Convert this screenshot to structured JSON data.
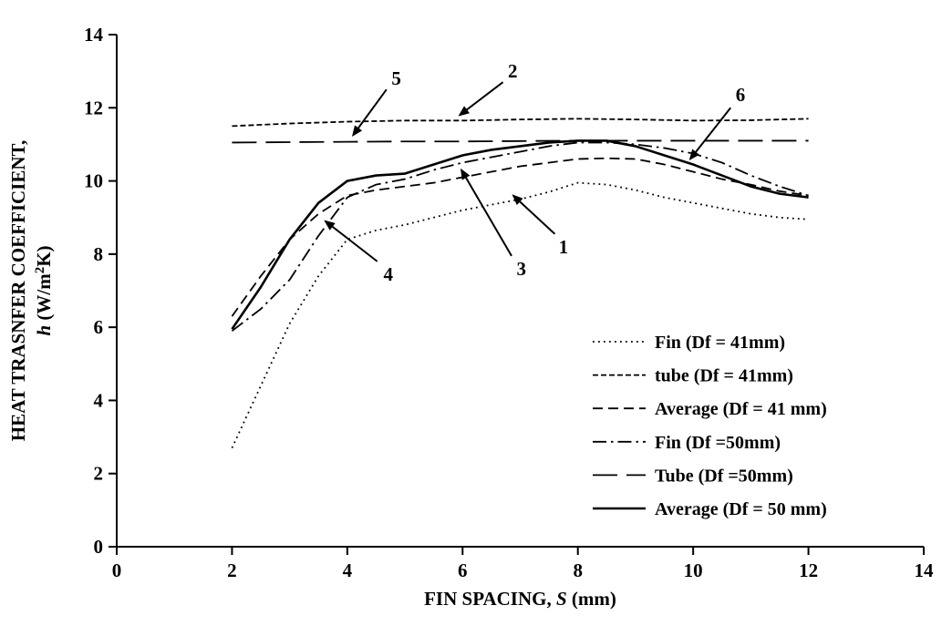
{
  "chart_data": {
    "type": "line",
    "title": "",
    "line_color": "#000000",
    "xlabel_pre": "FIN SPACING, ",
    "xlabel_italic": "S",
    "xlabel_post": " (mm)",
    "ylabel_line1": "HEAT TRASNFER COEFFICIENT,",
    "ylabel_line2": {
      "italic": "h",
      "pre_sup": " (W/m",
      "sup": "2",
      "post_sup": "K)"
    },
    "xlim": [
      0,
      14
    ],
    "ylim": [
      0,
      14
    ],
    "xticks": [
      0,
      2,
      4,
      6,
      8,
      10,
      12,
      14
    ],
    "yticks": [
      0,
      2,
      4,
      6,
      8,
      10,
      12,
      14
    ],
    "grid": false,
    "legend_position": "inside lower right",
    "series": [
      {
        "name": "Fin (Df = 41mm)",
        "line_style": "dotted",
        "dash": "1.8 4.2",
        "width": 1.8,
        "x": [
          2,
          2.5,
          3,
          3.5,
          4,
          4.5,
          5,
          5.5,
          6,
          6.5,
          7,
          7.5,
          8,
          8.5,
          9,
          9.5,
          10,
          10.5,
          11,
          11.5,
          12
        ],
        "y": [
          2.7,
          4.4,
          6.1,
          7.4,
          8.4,
          8.65,
          8.8,
          9.0,
          9.2,
          9.35,
          9.5,
          9.7,
          9.95,
          9.9,
          9.75,
          9.55,
          9.4,
          9.25,
          9.1,
          9.0,
          8.95
        ]
      },
      {
        "name": "tube (Df = 41mm)",
        "line_style": "short-dash",
        "dash": "6 3",
        "width": 1.8,
        "x": [
          2,
          3,
          4,
          5,
          6,
          7,
          8,
          9,
          10,
          11,
          12
        ],
        "y": [
          11.5,
          11.57,
          11.62,
          11.65,
          11.65,
          11.68,
          11.7,
          11.68,
          11.65,
          11.66,
          11.7
        ]
      },
      {
        "name": "Average (Df = 41 mm)",
        "line_style": "dash",
        "dash": "11 6",
        "width": 1.8,
        "x": [
          2,
          2.5,
          3,
          3.5,
          4,
          4.5,
          5,
          5.5,
          6,
          6.5,
          7,
          7.5,
          8,
          8.5,
          9,
          9.5,
          10,
          10.5,
          11,
          11.5,
          12
        ],
        "y": [
          6.3,
          7.4,
          8.4,
          9.1,
          9.6,
          9.75,
          9.85,
          9.95,
          10.1,
          10.25,
          10.4,
          10.5,
          10.6,
          10.62,
          10.6,
          10.45,
          10.25,
          10.05,
          9.9,
          9.72,
          9.6
        ]
      },
      {
        "name": "Fin (Df =50mm)",
        "line_style": "dash-dot",
        "dash": "15 5 2.5 5",
        "width": 1.8,
        "x": [
          2,
          2.5,
          3,
          3.5,
          4,
          4.5,
          5,
          5.5,
          6,
          6.5,
          7,
          7.5,
          8,
          8.5,
          9,
          9.5,
          10,
          10.5,
          11,
          11.5,
          12
        ],
        "y": [
          5.9,
          6.5,
          7.3,
          8.5,
          9.55,
          9.9,
          10.05,
          10.3,
          10.5,
          10.65,
          10.8,
          10.95,
          11.05,
          11.05,
          11.0,
          10.9,
          10.75,
          10.5,
          10.15,
          9.85,
          9.6
        ]
      },
      {
        "name": "Tube (Df =50mm)",
        "line_style": "long-dash",
        "dash": "27 10",
        "width": 1.8,
        "x": [
          2,
          3,
          4,
          5,
          6,
          7,
          8,
          9,
          10,
          11,
          12
        ],
        "y": [
          11.05,
          11.06,
          11.07,
          11.08,
          11.08,
          11.09,
          11.1,
          11.1,
          11.1,
          11.1,
          11.1
        ]
      },
      {
        "name": "Average (Df = 50 mm)",
        "line_style": "solid",
        "dash": "",
        "width": 2.6,
        "x": [
          2,
          2.5,
          3,
          3.5,
          4,
          4.5,
          5,
          5.5,
          6,
          6.5,
          7,
          7.5,
          8,
          8.5,
          9,
          9.5,
          10,
          10.5,
          11,
          11.5,
          12
        ],
        "y": [
          5.95,
          7.1,
          8.4,
          9.4,
          10.0,
          10.15,
          10.2,
          10.45,
          10.7,
          10.85,
          10.95,
          11.05,
          11.1,
          11.1,
          10.95,
          10.7,
          10.45,
          10.15,
          9.85,
          9.65,
          9.55
        ]
      }
    ],
    "annotations": [
      {
        "label": "1",
        "label_x": 7.75,
        "label_y": 8.2,
        "tail_x": 7.6,
        "tail_y": 8.55,
        "tip_x": 6.88,
        "tip_y": 9.6
      },
      {
        "label": "2",
        "label_x": 6.87,
        "label_y": 13.0,
        "tail_x": 6.7,
        "tail_y": 12.7,
        "tip_x": 5.95,
        "tip_y": 11.8
      },
      {
        "label": "3",
        "label_x": 7.02,
        "label_y": 7.6,
        "tail_x": 6.85,
        "tail_y": 7.95,
        "tip_x": 5.98,
        "tip_y": 10.3
      },
      {
        "label": "4",
        "label_x": 4.71,
        "label_y": 7.45,
        "tail_x": 4.52,
        "tail_y": 7.8,
        "tip_x": 3.62,
        "tip_y": 8.9
      },
      {
        "label": "5",
        "label_x": 4.85,
        "label_y": 12.8,
        "tail_x": 4.68,
        "tail_y": 12.5,
        "tip_x": 4.1,
        "tip_y": 11.25
      },
      {
        "label": "6",
        "label_x": 10.82,
        "label_y": 12.35,
        "tail_x": 10.65,
        "tail_y": 12.0,
        "tip_x": 9.95,
        "tip_y": 10.6
      }
    ]
  }
}
